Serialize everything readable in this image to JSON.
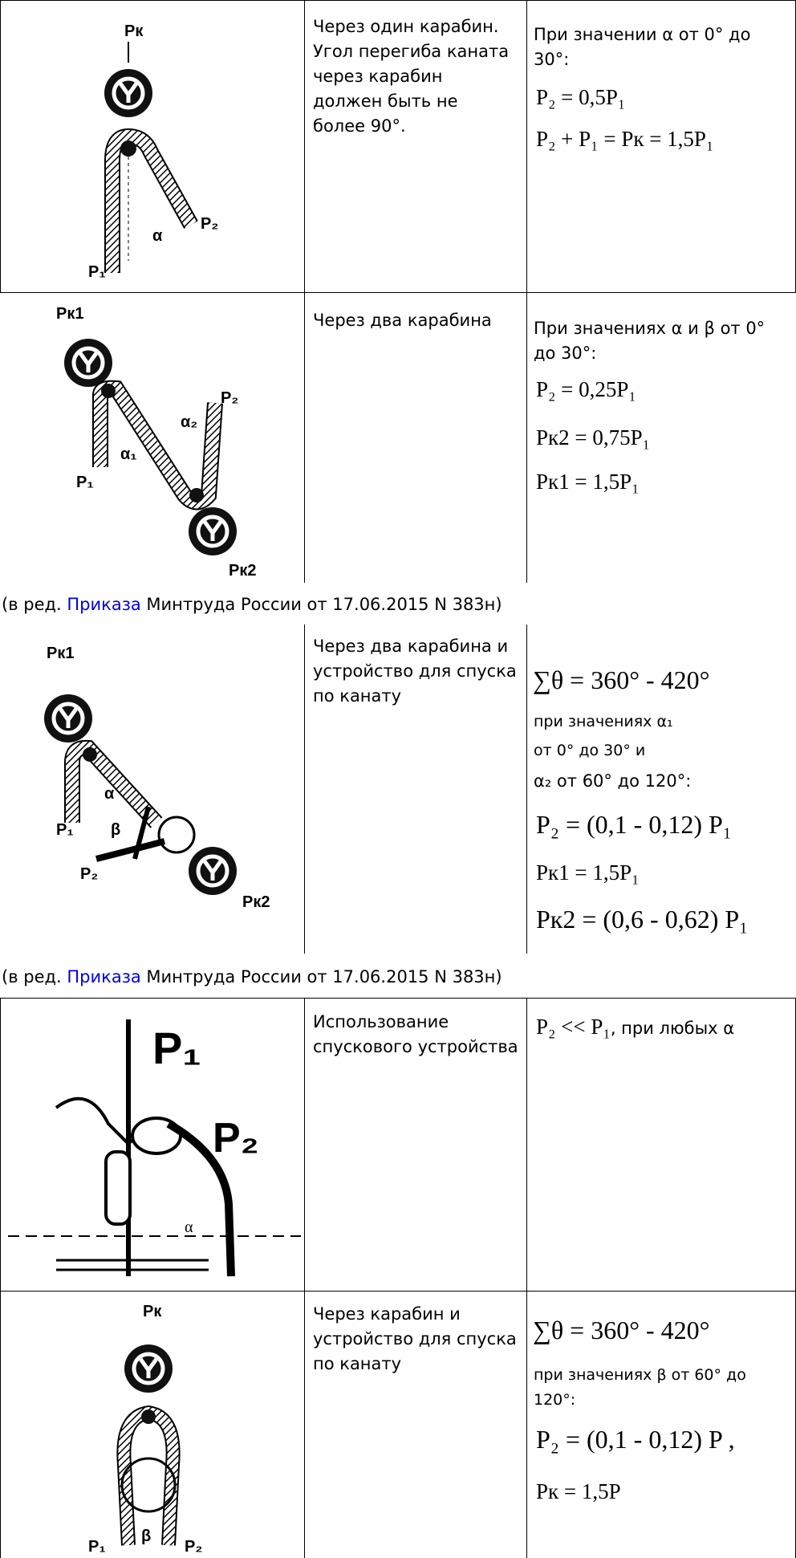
{
  "rows": [
    {
      "description": "Через один карабин. Угол перегиба каната через карабин должен быть не более 90°.",
      "condition": "При значении α от 0° до 30°:",
      "formulas": [
        "P₂ = 0,5P₁",
        "P₂ + P₁ = Pк = 1,5P₁"
      ],
      "figure_labels": [
        "Pк",
        "P₁",
        "P₂",
        "α"
      ]
    },
    {
      "description": "Через два карабина",
      "condition": "При значениях α и β от 0° до 30°:",
      "formulas": [
        "P₂ = 0,25P₁",
        "Pк2 = 0,75P₁",
        "Pк1 = 1,5P₁"
      ],
      "figure_labels": [
        "Pк1",
        "P₁",
        "α₁",
        "α₂",
        "P₂",
        "Pк2"
      ]
    },
    {
      "description": "Через два карабина и устройство для спуска по канату",
      "top_formula": "∑θ = 360° - 420°",
      "condition_lines": [
        "при значениях α₁",
        "от 0° до 30° и",
        "α₂ от 60° до 120°:"
      ],
      "formulas": [
        "P₂ = (0,1 - 0,12) P₁",
        "Pк1 = 1,5P₁",
        "Pк2 = (0,6 - 0,62) P₁"
      ],
      "figure_labels": [
        "Pк1",
        "P₁",
        "α",
        "β",
        "P₂",
        "Pк2"
      ]
    },
    {
      "description": "Использование спускового устройства",
      "formula": "P₂ << P₁",
      "condition": ", при любых α",
      "figure_labels": [
        "P₁",
        "P₂",
        "α"
      ]
    },
    {
      "description": "Через карабин и устройство для спуска по канату",
      "top_formula": "∑θ = 360° - 420°",
      "condition": "при значениях β от 60° до 120°:",
      "formulas": [
        "P₂ = (0,1 - 0,12) P ,",
        "Pк = 1,5P"
      ],
      "figure_labels": [
        "Pк",
        "P₁",
        "β",
        "P₂"
      ]
    }
  ],
  "notes": [
    {
      "prefix": "(в ред. ",
      "link": "Приказа",
      "suffix": " Минтруда России от 17.06.2015 N 383н)"
    },
    {
      "prefix": "(в ред. ",
      "link": "Приказа",
      "suffix": " Минтруда России от 17.06.2015 N 383н)"
    }
  ]
}
